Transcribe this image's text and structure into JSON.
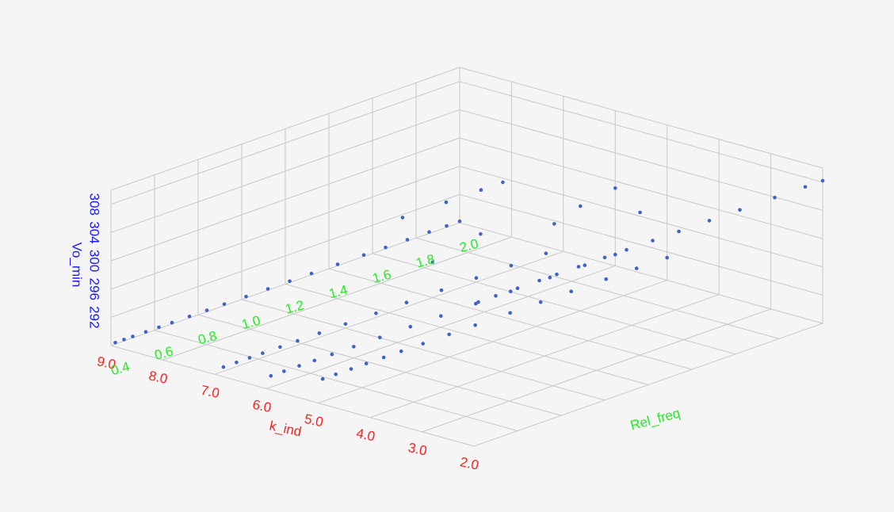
{
  "chart_data": {
    "type": "scatter",
    "dimensions": "3d",
    "background_color": "#f5f5f5",
    "grid": true,
    "marker_color": "#3d63c8",
    "axes": {
      "x": {
        "label": "k_ind",
        "color": "#ff2020",
        "range": [
          2.0,
          9.0
        ],
        "ticks": [
          2,
          3,
          4,
          5,
          6,
          7,
          8,
          9
        ],
        "tick_labels": [
          "2.0",
          "3.0",
          "4.0",
          "5.0",
          "6.0",
          "7.0",
          "8.0",
          "9.0"
        ]
      },
      "y": {
        "label": "Rel_freq",
        "color": "#22ee22",
        "range": [
          0.4,
          2.0
        ],
        "ticks": [
          0.4,
          0.6,
          0.8,
          1.0,
          1.2,
          1.4,
          1.6,
          1.8,
          2.0
        ],
        "tick_labels": [
          "0.4",
          "0.6",
          "0.8",
          "1.0",
          "1.2",
          "1.4",
          "1.6",
          "1.8",
          "2.0"
        ]
      },
      "z": {
        "label": "Vo_min",
        "color": "#1a1aff",
        "range": [
          288,
          310
        ],
        "ticks": [
          292,
          296,
          300,
          304,
          308
        ],
        "tick_labels": [
          "292",
          "296",
          "300",
          "304",
          "308"
        ]
      }
    },
    "points": [
      [
        2.0,
        0.42,
        308.2
      ],
      [
        2.0,
        0.5,
        308.2
      ],
      [
        2.0,
        0.6,
        308.2
      ],
      [
        2.0,
        0.7,
        308.2
      ],
      [
        2.0,
        0.78,
        308.2
      ],
      [
        2.0,
        0.88,
        308.2
      ],
      [
        2.0,
        1.0,
        308.2
      ],
      [
        2.0,
        1.1,
        308.2
      ],
      [
        2.0,
        1.22,
        308.2
      ],
      [
        2.0,
        1.34,
        308.2
      ],
      [
        2.0,
        1.48,
        308.2
      ],
      [
        2.0,
        1.62,
        308.2
      ],
      [
        2.0,
        1.78,
        308.2
      ],
      [
        2.0,
        1.92,
        308.2
      ],
      [
        2.0,
        2.0,
        308.2
      ],
      [
        5.0,
        0.42,
        291.2
      ],
      [
        5.0,
        0.48,
        291.2
      ],
      [
        5.0,
        0.55,
        291.2
      ],
      [
        5.0,
        0.62,
        291.2
      ],
      [
        5.0,
        0.7,
        291.2
      ],
      [
        5.0,
        0.78,
        291.2
      ],
      [
        5.0,
        0.88,
        291.2
      ],
      [
        5.0,
        1.0,
        291.2
      ],
      [
        5.0,
        1.12,
        291.2
      ],
      [
        5.0,
        1.28,
        291.2
      ],
      [
        5.0,
        1.42,
        291.2
      ],
      [
        5.0,
        1.56,
        291.2
      ],
      [
        5.0,
        1.72,
        291.2
      ],
      [
        5.0,
        1.86,
        291.2
      ],
      [
        5.0,
        2.0,
        291.2
      ],
      [
        6.0,
        0.42,
        289.6
      ],
      [
        6.0,
        0.48,
        289.6
      ],
      [
        6.0,
        0.55,
        289.6
      ],
      [
        6.0,
        0.62,
        289.6
      ],
      [
        6.0,
        0.7,
        289.6
      ],
      [
        6.0,
        0.8,
        289.6
      ],
      [
        6.0,
        0.92,
        289.6
      ],
      [
        6.0,
        1.06,
        289.6
      ],
      [
        6.0,
        1.2,
        289.6
      ],
      [
        6.0,
        1.36,
        289.6
      ],
      [
        6.0,
        1.52,
        289.6
      ],
      [
        6.0,
        1.7,
        289.6
      ],
      [
        6.0,
        1.86,
        289.6
      ],
      [
        6.0,
        2.0,
        289.6
      ],
      [
        7.0,
        0.44,
        288.6
      ],
      [
        7.0,
        0.5,
        288.6
      ],
      [
        7.0,
        0.56,
        288.6
      ],
      [
        7.0,
        0.62,
        288.6
      ],
      [
        7.0,
        0.7,
        288.6
      ],
      [
        7.0,
        0.78,
        288.6
      ],
      [
        7.0,
        0.88,
        288.6
      ],
      [
        7.0,
        1.0,
        288.6
      ],
      [
        7.0,
        1.14,
        288.6
      ],
      [
        7.0,
        1.28,
        288.6
      ],
      [
        7.0,
        1.44,
        288.6
      ],
      [
        7.0,
        1.6,
        288.6
      ],
      [
        7.0,
        1.76,
        288.6
      ],
      [
        7.0,
        1.92,
        288.6
      ],
      [
        7.0,
        1.4,
        293.0
      ],
      [
        7.0,
        1.62,
        294.6
      ],
      [
        9.0,
        0.42,
        288.2
      ],
      [
        9.0,
        0.46,
        288.2
      ],
      [
        9.0,
        0.5,
        288.2
      ],
      [
        9.0,
        0.56,
        288.2
      ],
      [
        9.0,
        0.62,
        288.2
      ],
      [
        9.0,
        0.68,
        288.2
      ],
      [
        9.0,
        0.76,
        288.2
      ],
      [
        9.0,
        0.84,
        288.2
      ],
      [
        9.0,
        0.92,
        288.2
      ],
      [
        9.0,
        1.02,
        288.2
      ],
      [
        9.0,
        1.12,
        288.2
      ],
      [
        9.0,
        1.22,
        288.2
      ],
      [
        9.0,
        1.32,
        288.2
      ],
      [
        9.0,
        1.44,
        288.2
      ],
      [
        9.0,
        1.56,
        288.2
      ],
      [
        9.0,
        1.66,
        288.2
      ],
      [
        9.0,
        1.76,
        288.2
      ],
      [
        9.0,
        1.86,
        288.2
      ],
      [
        9.0,
        1.94,
        288.2
      ],
      [
        9.0,
        2.0,
        288.2
      ],
      [
        8.0,
        1.5,
        296.2
      ],
      [
        8.0,
        1.7,
        296.2
      ],
      [
        8.0,
        1.86,
        296.2
      ],
      [
        8.0,
        1.96,
        296.2
      ],
      [
        6.0,
        1.72,
        297.0
      ],
      [
        6.0,
        1.84,
        298.2
      ],
      [
        6.0,
        2.0,
        299.0
      ],
      [
        3.0,
        1.4,
        308.2
      ]
    ]
  }
}
